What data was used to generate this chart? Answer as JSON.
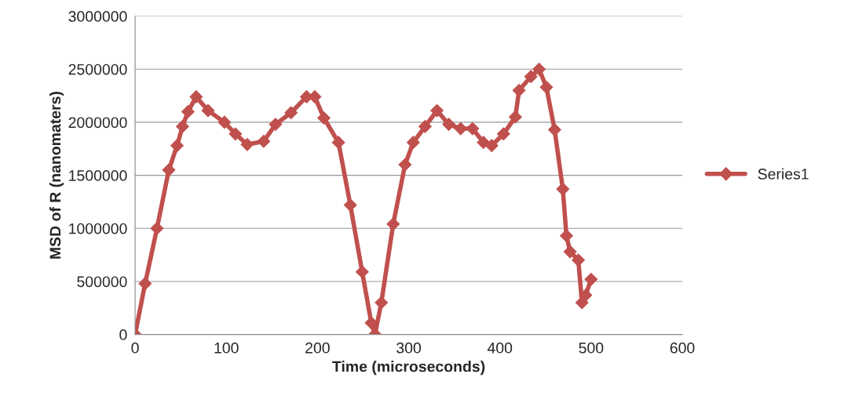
{
  "chart_data": {
    "type": "line",
    "xlabel": "Time (microseconds)",
    "ylabel": "MSD of R (nanomaters)",
    "xlim": [
      0,
      600
    ],
    "xticks": [
      0,
      100,
      200,
      300,
      400,
      500,
      600
    ],
    "ylim": [
      0,
      3000000
    ],
    "yticks": [
      0,
      500000,
      1000000,
      1500000,
      2000000,
      2500000,
      3000000
    ],
    "grid": "y",
    "legend": "right",
    "marker": "diamond",
    "line_style": "solid",
    "series": [
      {
        "name": "Series1",
        "color": "#c0504d",
        "x": [
          0,
          11,
          24,
          37,
          46,
          52,
          58,
          67,
          80,
          98,
          110,
          123,
          141,
          154,
          171,
          188,
          197,
          207,
          223,
          236,
          249,
          259,
          263,
          270,
          283,
          296,
          305,
          318,
          331,
          344,
          357,
          370,
          382,
          391,
          404,
          417,
          421,
          434,
          443,
          451,
          460,
          469,
          473,
          477,
          486,
          490,
          494,
          500
        ],
        "values": [
          0,
          480000,
          1000000,
          1550000,
          1780000,
          1960000,
          2100000,
          2240000,
          2110000,
          2000000,
          1890000,
          1790000,
          1820000,
          1980000,
          2090000,
          2240000,
          2240000,
          2040000,
          1810000,
          1220000,
          590000,
          110000,
          0,
          300000,
          1040000,
          1600000,
          1810000,
          1960000,
          2110000,
          1980000,
          1940000,
          1940000,
          1810000,
          1780000,
          1890000,
          2050000,
          2300000,
          2430000,
          2500000,
          2330000,
          1930000,
          1370000,
          930000,
          780000,
          700000,
          300000,
          370000,
          520000
        ]
      }
    ]
  }
}
